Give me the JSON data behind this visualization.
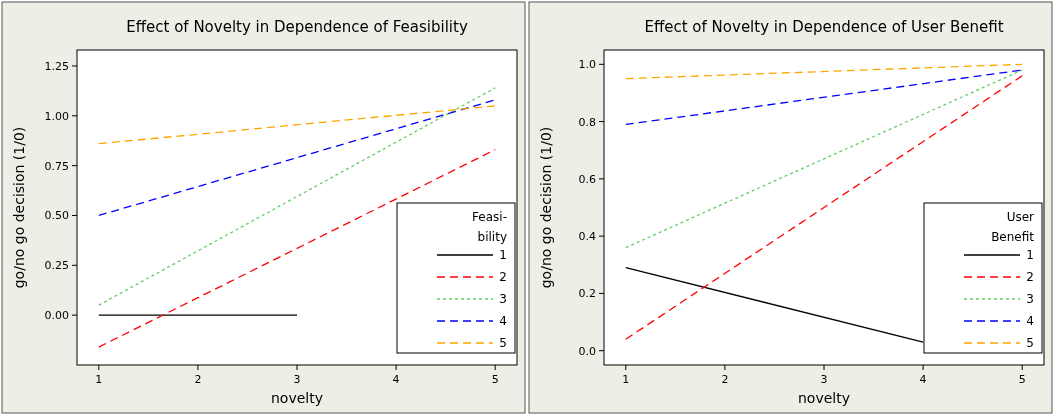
{
  "chart_data": [
    {
      "type": "line",
      "title": "Effect of Novelty in Dependence of Feasibility",
      "xlabel": "novelty",
      "ylabel": "go/no go decision (1/0)",
      "legend_title": "Feasi-bility",
      "legend": "bottom right",
      "grid": false,
      "xlim": [
        0.78,
        5.22
      ],
      "xticks": [
        1,
        2,
        3,
        4,
        5
      ],
      "ylim": [
        -0.25,
        1.33
      ],
      "yticks": [
        {
          "value": 0,
          "label": "0.00"
        },
        {
          "value": 0.25,
          "label": "0.25"
        },
        {
          "value": 0.5,
          "label": "0.50"
        },
        {
          "value": 0.75,
          "label": "0.75"
        },
        {
          "value": 1,
          "label": "1.00"
        },
        {
          "value": 1.25,
          "label": "1.25"
        }
      ],
      "series": [
        {
          "name": "1",
          "color": "#000000",
          "line_style": "solid",
          "x": [
            1,
            3
          ],
          "values": [
            0,
            0
          ]
        },
        {
          "name": "2",
          "color": "#ff0000",
          "line_style": "dashed",
          "x": [
            1,
            5
          ],
          "values": [
            -0.16,
            0.83
          ]
        },
        {
          "name": "3",
          "color": "#66cc66",
          "line_style": "dotted",
          "x": [
            1,
            5
          ],
          "values": [
            0.05,
            1.14
          ]
        },
        {
          "name": "4",
          "color": "#0000ff",
          "line_style": "dashed",
          "x": [
            1,
            5
          ],
          "values": [
            0.5,
            1.08
          ]
        },
        {
          "name": "5",
          "color": "#ffa500",
          "line_style": "dashed",
          "x": [
            1,
            5
          ],
          "values": [
            0.86,
            1.05
          ]
        }
      ]
    },
    {
      "type": "line",
      "title": "Effect of Novelty in Dependence of User Benefit",
      "xlabel": "novelty",
      "ylabel": "go/no go decision (1/0)",
      "legend_title": "User Benefit",
      "legend": "bottom right",
      "grid": false,
      "xlim": [
        0.78,
        5.22
      ],
      "xticks": [
        1,
        2,
        3,
        4,
        5
      ],
      "ylim": [
        -0.05,
        1.05
      ],
      "yticks": [
        {
          "value": 0,
          "label": "0.0"
        },
        {
          "value": 0.2,
          "label": "0.2"
        },
        {
          "value": 0.4,
          "label": "0.4"
        },
        {
          "value": 0.6,
          "label": "0.6"
        },
        {
          "value": 0.8,
          "label": "0.8"
        },
        {
          "value": 1,
          "label": "1.0"
        }
      ],
      "series": [
        {
          "name": "1",
          "color": "#000000",
          "line_style": "solid",
          "x": [
            1,
            4
          ],
          "values": [
            0.29,
            0.03
          ]
        },
        {
          "name": "2",
          "color": "#ff0000",
          "line_style": "dashed",
          "x": [
            1,
            5
          ],
          "values": [
            0.04,
            0.96
          ]
        },
        {
          "name": "3",
          "color": "#66cc66",
          "line_style": "dotted",
          "x": [
            1,
            5
          ],
          "values": [
            0.36,
            0.98
          ]
        },
        {
          "name": "4",
          "color": "#0000ff",
          "line_style": "dashed",
          "x": [
            1,
            5
          ],
          "values": [
            0.79,
            0.98
          ]
        },
        {
          "name": "5",
          "color": "#ffa500",
          "line_style": "dashed",
          "x": [
            1,
            5
          ],
          "values": [
            0.95,
            1.0
          ]
        }
      ]
    }
  ]
}
